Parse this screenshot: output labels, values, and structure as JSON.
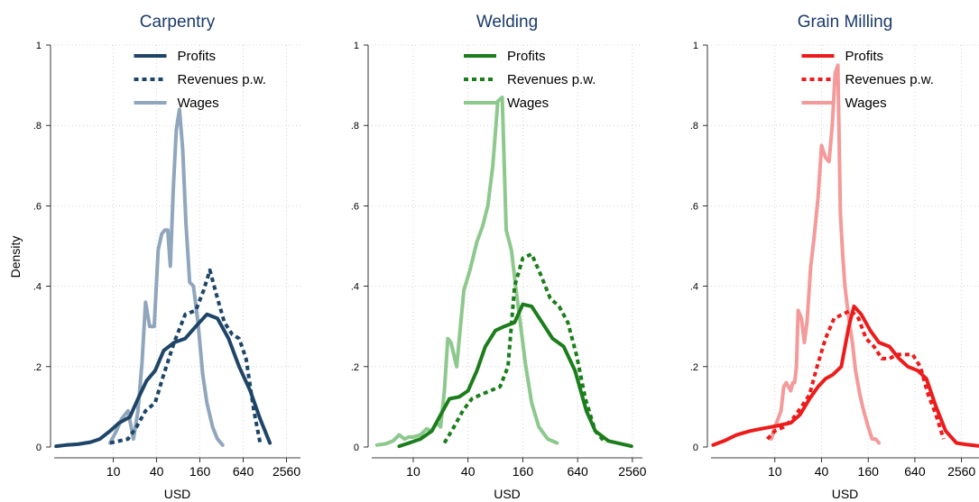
{
  "chart_data": [
    {
      "type": "line",
      "title": "Carpentry",
      "xlabel": "USD",
      "ylabel": "Density",
      "x_scale": "log2",
      "x_ticks": [
        10,
        40,
        160,
        640,
        2560
      ],
      "x_tick_labels": [
        "10",
        "40",
        "160",
        "640",
        "2560"
      ],
      "xlim": [
        1.5,
        4000
      ],
      "ylim": [
        0,
        1
      ],
      "y_ticks": [
        0,
        0.2,
        0.4,
        0.6,
        0.8,
        1
      ],
      "y_tick_labels": [
        "0",
        ".2",
        ".4",
        ".6",
        ".8",
        "1"
      ],
      "grid": true,
      "legend": "top-right",
      "colors": {
        "Profits": "#1e4568",
        "Revenues p.w.": "#1e4568",
        "Wages": "#90a6bc"
      },
      "series": [
        {
          "name": "Profits",
          "style": "solid",
          "x": [
            1.6,
            2.2,
            3.2,
            4.8,
            6.5,
            9,
            12,
            17,
            22,
            29,
            38,
            50,
            70,
            100,
            140,
            200,
            280,
            400,
            560,
            800,
            1100,
            1500
          ],
          "y": [
            0.002,
            0.005,
            0.007,
            0.012,
            0.02,
            0.04,
            0.06,
            0.075,
            0.12,
            0.165,
            0.19,
            0.24,
            0.26,
            0.27,
            0.3,
            0.33,
            0.32,
            0.27,
            0.2,
            0.14,
            0.07,
            0.01
          ]
        },
        {
          "name": "Revenues p.w.",
          "style": "dotted",
          "x": [
            9,
            12,
            16,
            21,
            28,
            38,
            50,
            70,
            100,
            140,
            180,
            220,
            280,
            350,
            450,
            560,
            700,
            900,
            1100
          ],
          "y": [
            0.01,
            0.015,
            0.02,
            0.05,
            0.09,
            0.11,
            0.18,
            0.26,
            0.33,
            0.34,
            0.39,
            0.44,
            0.37,
            0.31,
            0.28,
            0.27,
            0.22,
            0.09,
            0.01
          ]
        },
        {
          "name": "Wages",
          "style": "solid",
          "x": [
            9,
            11,
            13,
            16,
            19,
            22,
            25,
            28,
            32,
            37,
            42,
            47,
            52,
            57,
            62,
            68,
            75,
            83,
            92,
            102,
            115,
            130,
            150,
            175,
            200,
            240,
            280,
            330
          ],
          "y": [
            0.01,
            0.04,
            0.07,
            0.09,
            0.02,
            0.09,
            0.21,
            0.36,
            0.3,
            0.3,
            0.49,
            0.53,
            0.54,
            0.54,
            0.45,
            0.64,
            0.79,
            0.84,
            0.74,
            0.56,
            0.41,
            0.4,
            0.31,
            0.18,
            0.11,
            0.05,
            0.02,
            0.005
          ]
        }
      ]
    },
    {
      "type": "line",
      "title": "Welding",
      "xlabel": "USD",
      "ylabel": "",
      "x_scale": "log2",
      "x_ticks": [
        10,
        40,
        160,
        640,
        2560
      ],
      "x_tick_labels": [
        "10",
        "40",
        "160",
        "640",
        "2560"
      ],
      "xlim": [
        3.5,
        3300
      ],
      "ylim": [
        0,
        1
      ],
      "y_ticks": [
        0,
        0.2,
        0.4,
        0.6,
        0.8,
        1
      ],
      "y_tick_labels": [
        "0",
        ".2",
        ".4",
        ".6",
        ".8",
        "1"
      ],
      "grid": true,
      "legend": "top-right",
      "colors": {
        "Profits": "#1b7d1b",
        "Revenues p.w.": "#1b7d1b",
        "Wages": "#8dc88d"
      },
      "series": [
        {
          "name": "Profits",
          "style": "solid",
          "x": [
            7,
            9,
            12,
            16,
            20,
            25,
            32,
            40,
            50,
            62,
            80,
            100,
            130,
            160,
            200,
            260,
            340,
            450,
            600,
            800,
            1000,
            1400,
            2500
          ],
          "y": [
            0.002,
            0.01,
            0.02,
            0.04,
            0.08,
            0.12,
            0.125,
            0.14,
            0.19,
            0.25,
            0.29,
            0.3,
            0.31,
            0.355,
            0.35,
            0.31,
            0.27,
            0.25,
            0.19,
            0.09,
            0.04,
            0.015,
            0.002
          ]
        },
        {
          "name": "Revenues p.w.",
          "style": "dotted",
          "x": [
            22,
            28,
            35,
            44,
            55,
            70,
            90,
            110,
            130,
            160,
            200,
            250,
            320,
            400,
            500,
            620,
            780,
            1000,
            1300
          ],
          "y": [
            0.01,
            0.05,
            0.09,
            0.12,
            0.13,
            0.14,
            0.15,
            0.2,
            0.4,
            0.47,
            0.48,
            0.43,
            0.37,
            0.35,
            0.31,
            0.23,
            0.12,
            0.04,
            0.01
          ]
        },
        {
          "name": "Wages",
          "style": "solid",
          "x": [
            4,
            5,
            6,
            7,
            8,
            9,
            10,
            12,
            14,
            16,
            18,
            20,
            22,
            24,
            26,
            30,
            36,
            42,
            50,
            58,
            66,
            75,
            85,
            95,
            105,
            120,
            135,
            150,
            170,
            200,
            240,
            300,
            380
          ],
          "y": [
            0.005,
            0.008,
            0.015,
            0.03,
            0.02,
            0.025,
            0.025,
            0.03,
            0.045,
            0.04,
            0.06,
            0.05,
            0.14,
            0.27,
            0.26,
            0.2,
            0.39,
            0.44,
            0.51,
            0.55,
            0.6,
            0.7,
            0.86,
            0.87,
            0.54,
            0.49,
            0.39,
            0.31,
            0.21,
            0.11,
            0.05,
            0.02,
            0.01
          ]
        }
      ]
    },
    {
      "type": "line",
      "title": "Grain Milling",
      "xlabel": "USD",
      "ylabel": "",
      "x_scale": "log2",
      "x_ticks": [
        10,
        40,
        160,
        640,
        2560
      ],
      "x_tick_labels": [
        "10",
        "40",
        "160",
        "640",
        "2560"
      ],
      "xlim": [
        1.5,
        4300
      ],
      "ylim": [
        0,
        1
      ],
      "y_ticks": [
        0,
        0.2,
        0.4,
        0.6,
        0.8,
        1
      ],
      "y_tick_labels": [
        "0",
        ".2",
        ".4",
        ".6",
        ".8",
        "1"
      ],
      "grid": true,
      "legend": "top-right",
      "colors": {
        "Profits": "#ec1c1c",
        "Revenues p.w.": "#ec1c1c",
        "Wages": "#f49a9a"
      },
      "series": [
        {
          "name": "Profits",
          "style": "solid",
          "x": [
            1.6,
            2.2,
            3.2,
            4.8,
            6.5,
            9,
            12,
            16,
            21,
            28,
            36,
            45,
            56,
            72,
            90,
            105,
            130,
            170,
            220,
            300,
            400,
            520,
            700,
            900,
            1200,
            1600,
            2200,
            3000,
            4200
          ],
          "y": [
            0.005,
            0.015,
            0.03,
            0.04,
            0.045,
            0.05,
            0.055,
            0.06,
            0.08,
            0.12,
            0.15,
            0.17,
            0.18,
            0.2,
            0.3,
            0.35,
            0.33,
            0.29,
            0.26,
            0.25,
            0.22,
            0.2,
            0.19,
            0.17,
            0.1,
            0.04,
            0.01,
            0.006,
            0.003
          ]
        },
        {
          "name": "Revenues p.w.",
          "style": "dotted",
          "x": [
            8,
            10,
            13,
            17,
            22,
            28,
            35,
            45,
            58,
            75,
            95,
            120,
            150,
            190,
            240,
            300,
            380,
            480,
            600,
            750,
            950,
            1200,
            1500
          ],
          "y": [
            0.02,
            0.04,
            0.05,
            0.07,
            0.1,
            0.13,
            0.2,
            0.27,
            0.32,
            0.33,
            0.34,
            0.32,
            0.27,
            0.25,
            0.22,
            0.22,
            0.23,
            0.23,
            0.23,
            0.2,
            0.13,
            0.08,
            0.02
          ]
        },
        {
          "name": "Wages",
          "style": "solid",
          "x": [
            9,
            10,
            11,
            12,
            13,
            14,
            15,
            16,
            17,
            18,
            19,
            20,
            22,
            24,
            26,
            29,
            32,
            36,
            40,
            45,
            50,
            55,
            60,
            65,
            70,
            75,
            80,
            90,
            100,
            110,
            125,
            140,
            160,
            180,
            200,
            220
          ],
          "y": [
            0.02,
            0.05,
            0.07,
            0.09,
            0.15,
            0.16,
            0.15,
            0.14,
            0.16,
            0.16,
            0.2,
            0.34,
            0.32,
            0.26,
            0.31,
            0.45,
            0.52,
            0.62,
            0.75,
            0.72,
            0.71,
            0.8,
            0.93,
            0.95,
            0.58,
            0.48,
            0.4,
            0.32,
            0.26,
            0.19,
            0.13,
            0.09,
            0.05,
            0.02,
            0.02,
            0.01
          ]
        }
      ]
    }
  ]
}
